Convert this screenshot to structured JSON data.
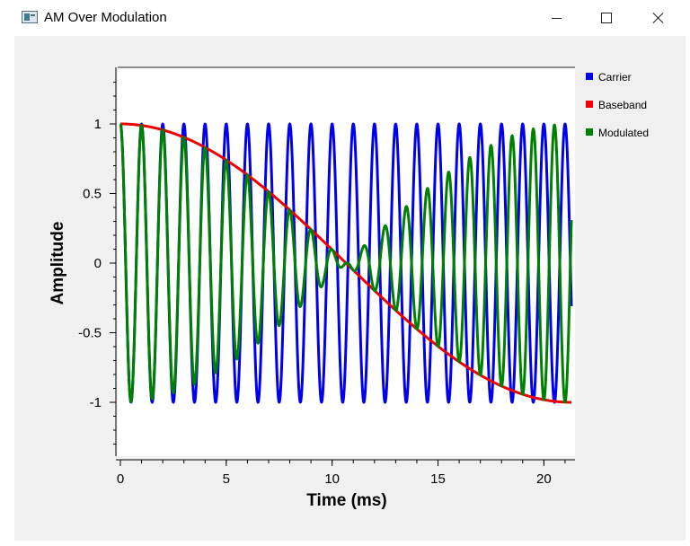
{
  "window": {
    "title": "AM Over Modulation",
    "minimize_icon": "minimize-icon",
    "maximize_icon": "maximize-icon",
    "close_icon": "close-icon"
  },
  "chart_data": {
    "type": "line",
    "title": "",
    "xlabel": "Time (ms)",
    "ylabel": "Amplitude",
    "xlim": [
      0,
      21.3
    ],
    "ylim": [
      -1.4,
      1.4
    ],
    "xticks": [
      0,
      5,
      10,
      15,
      20
    ],
    "yticks": [
      1,
      0.5,
      0,
      -0.5,
      -1
    ],
    "xtick_labels": [
      "0",
      "5",
      "10",
      "15",
      "20"
    ],
    "ytick_labels": [
      "1",
      "0.5",
      "0",
      "-0.5",
      "-1"
    ],
    "grid": false,
    "legend_position": "right",
    "series": [
      {
        "name": "Carrier",
        "color": "#0000ee",
        "formula": "cos(2*pi*f_c*t)",
        "carrier_frequency_khz": 1,
        "t_range_ms": [
          0,
          21.3
        ]
      },
      {
        "name": "Baseband",
        "color": "#ee0000",
        "formula": "cos(2*pi*f_m*t)",
        "baseband_frequency_khz": 0.02346,
        "t_range_ms": [
          0,
          21.3
        ]
      },
      {
        "name": "Modulated",
        "color": "#008000",
        "formula": "baseband * carrier",
        "t_range_ms": [
          0,
          21.3
        ]
      }
    ]
  }
}
